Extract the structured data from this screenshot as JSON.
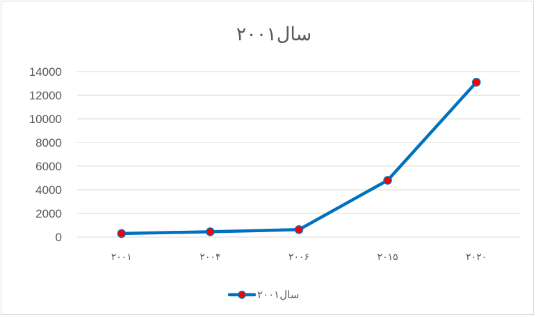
{
  "chart_data": {
    "type": "line",
    "title": "سال۲۰۰۱",
    "categories": [
      "۲۰۰۱",
      "۲۰۰۴",
      "۲۰۰۶",
      "۲۰۱۵",
      "۲۰۲۰"
    ],
    "series": [
      {
        "name": "سال۲۰۰۱",
        "values": [
          300,
          450,
          630,
          4800,
          13100
        ]
      }
    ],
    "xlabel": "",
    "ylabel": "",
    "ylim": [
      0,
      14000
    ],
    "yticks": [
      0,
      2000,
      4000,
      6000,
      8000,
      10000,
      12000,
      14000
    ],
    "grid": true,
    "legend": "bottom",
    "colors": {
      "line": "#0070c0",
      "marker_fill": "#ff0000",
      "marker_edge": "#0070c0",
      "grid": "#d9d9d9",
      "text": "#595959"
    }
  }
}
